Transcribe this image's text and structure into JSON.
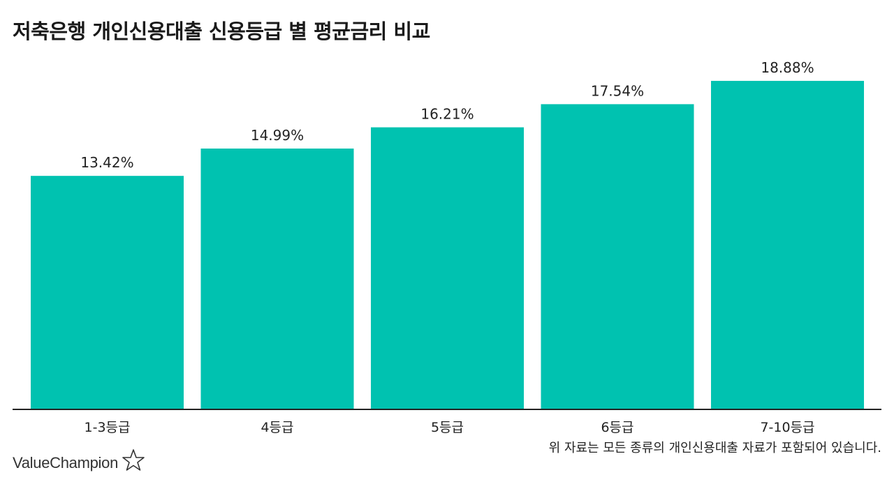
{
  "title": "저축은행 개인신용대출 신용등급 별 평균금리 비교",
  "note": "위 자료는 모든 종류의 개인신용대출 자료가 포함되어 있습니다.",
  "brand": {
    "name": "ValueChampion",
    "icon": "star-outline-icon"
  },
  "colors": {
    "bar": "#00c2b0",
    "axis": "#222222",
    "text": "#222222"
  },
  "chart_data": {
    "type": "bar",
    "categories": [
      "1-3등급",
      "4등급",
      "5등급",
      "6등급",
      "7-10등급"
    ],
    "values": [
      13.42,
      14.99,
      16.21,
      17.54,
      18.88
    ],
    "value_labels": [
      "13.42%",
      "14.99%",
      "16.21%",
      "17.54%",
      "18.88%"
    ],
    "title": "저축은행 개인신용대출 신용등급 별 평균금리 비교",
    "xlabel": "",
    "ylabel": "",
    "ylim": [
      0,
      20
    ],
    "grid": false,
    "legend": "none"
  }
}
